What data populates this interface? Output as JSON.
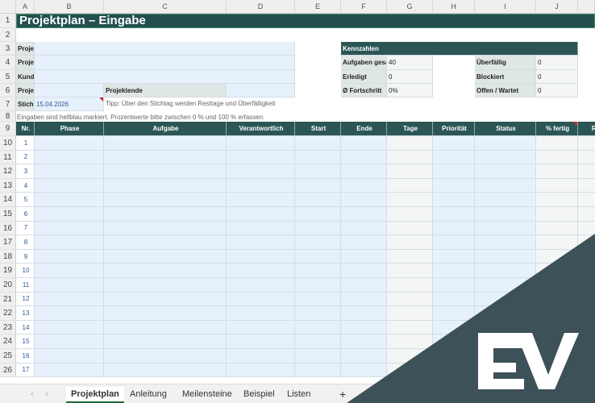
{
  "columns": [
    "A",
    "B",
    "C",
    "D",
    "E",
    "F",
    "G",
    "H",
    "I",
    "J"
  ],
  "title": "Projektplan – Eingabe",
  "info_labels": [
    "Projek",
    "Projek",
    "Kunde",
    "Projek"
  ],
  "project_end_label": "Projektende",
  "stichtag_label": "Stichta",
  "stichtag_value": "15.04.2026",
  "tip": "Tipp: Über den Stichtag werden Resttage und Überfälligkeit",
  "hint": "Eingaben sind hellblau markiert. Prozentwerte bitte zwischen 0 % und 100 % erfassen.",
  "kpi": {
    "title": "Kennzahlen",
    "left": [
      {
        "label": "Aufgaben gesar",
        "value": "40"
      },
      {
        "label": "Erledigt",
        "value": "0"
      },
      {
        "label": "Ø Fortschritt",
        "value": "0%"
      }
    ],
    "right": [
      {
        "label": "Überfällig",
        "value": "0"
      },
      {
        "label": "Blockiert",
        "value": "0"
      },
      {
        "label": "Offen / Wartet",
        "value": "0"
      }
    ]
  },
  "table": {
    "headers": [
      "Nr.",
      "Phase",
      "Aufgabe",
      "Verantwortlich",
      "Start",
      "Ende",
      "Tage",
      "Priorität",
      "Status",
      "% fertig",
      "Re"
    ],
    "row_numbers": [
      "1",
      "2",
      "3",
      "4",
      "5",
      "6",
      "7",
      "8",
      "9",
      "10",
      "11",
      "12",
      "13",
      "14",
      "15",
      "16",
      "17"
    ]
  },
  "sheet_tabs": {
    "items": [
      "Projektplan",
      "Anleitung",
      "Meilensteine",
      "Beispiel",
      "Listen"
    ],
    "active": "Projektplan",
    "add": "+"
  },
  "brand_color": "#3d5159",
  "header_color": "#2c5656"
}
